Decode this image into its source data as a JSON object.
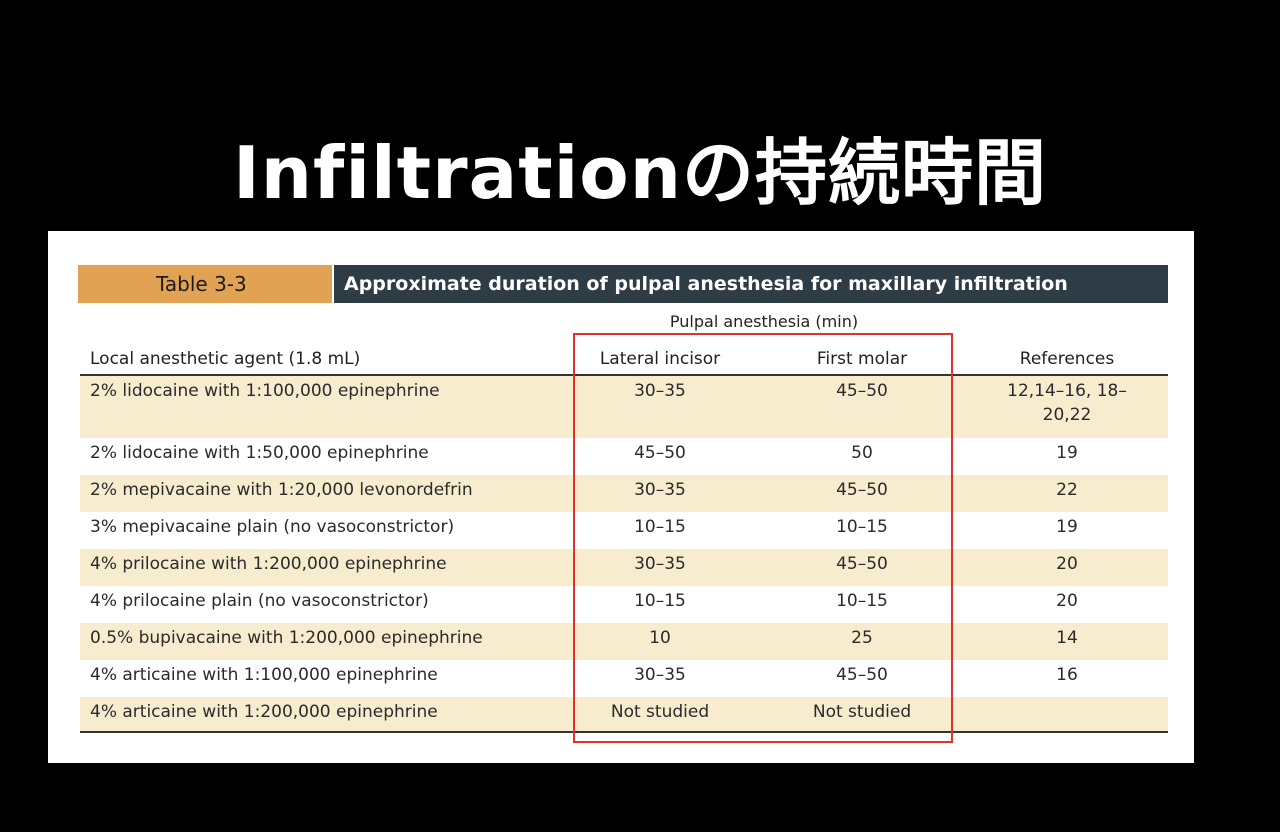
{
  "slide": {
    "title": "Infiltrationの持続時間"
  },
  "table": {
    "number": "Table 3-3",
    "caption": "Approximate duration of pulpal anesthesia for maxillary infiltration",
    "group_header": "Pulpal anesthesia (min)",
    "columns": {
      "agent": "Local anesthetic agent (1.8 mL)",
      "lateral": "Lateral incisor",
      "molar": "First molar",
      "references": "References"
    },
    "rows": [
      {
        "agent": "2% lidocaine with 1:100,000 epinephrine",
        "lateral": "30–35",
        "molar": "45–50",
        "references": "12,14–16, 18–20,22"
      },
      {
        "agent": "2% lidocaine with 1:50,000 epinephrine",
        "lateral": "45–50",
        "molar": "50",
        "references": "19"
      },
      {
        "agent": "2% mepivacaine with 1:20,000 levonordefrin",
        "lateral": "30–35",
        "molar": "45–50",
        "references": "22"
      },
      {
        "agent": "3% mepivacaine plain (no vasoconstrictor)",
        "lateral": "10–15",
        "molar": "10–15",
        "references": "19"
      },
      {
        "agent": "4% prilocaine with 1:200,000 epinephrine",
        "lateral": "30–35",
        "molar": "45–50",
        "references": "20"
      },
      {
        "agent": "4% prilocaine plain (no vasoconstrictor)",
        "lateral": "10–15",
        "molar": "10–15",
        "references": "20"
      },
      {
        "agent": "0.5% bupivacaine with 1:200,000 epinephrine",
        "lateral": "10",
        "molar": "25",
        "references": "14"
      },
      {
        "agent": "4% articaine with 1:100,000 epinephrine",
        "lateral": "30–35",
        "molar": "45–50",
        "references": "16"
      },
      {
        "agent": "4% articaine with 1:200,000 epinephrine",
        "lateral": "Not studied",
        "molar": "Not studied",
        "references": ""
      }
    ]
  },
  "colors": {
    "table_number_bg": "#e2a253",
    "caption_bg": "#2e3c45",
    "row_shade": "#f8eccf",
    "highlight": "#e0312b"
  }
}
